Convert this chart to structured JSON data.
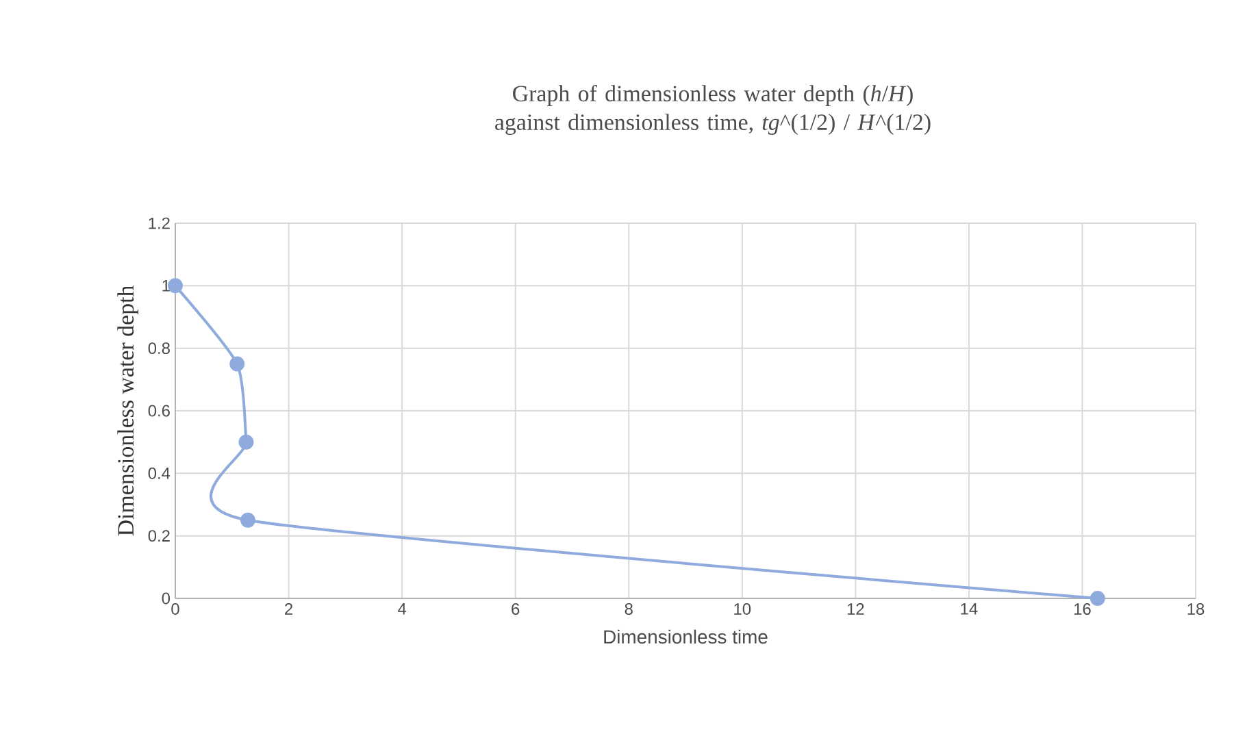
{
  "chart_data": {
    "type": "line",
    "title": "Graph of dimensionless water depth (*h*/*H*) against dimensionless time, *tg*^(1/2)  /  *H*^(1/2)",
    "xlabel": "Dimensionless time",
    "ylabel": "Dimensionless water depth",
    "x": [
      0,
      1.09,
      1.25,
      1.28,
      16.27
    ],
    "series": [
      {
        "color": "#8faadc",
        "values": [
          1,
          0.75,
          0.5,
          0.25,
          0
        ]
      }
    ],
    "xlim": [
      0,
      18
    ],
    "xticks": [
      0,
      2,
      4,
      6,
      8,
      10,
      12,
      14,
      16,
      18
    ],
    "ylim": [
      0,
      1.2
    ],
    "yticks": [
      0,
      0.2,
      0.4,
      0.6,
      0.8,
      1,
      1.2
    ],
    "grid": true,
    "marker": "circle",
    "line_style": "solid"
  }
}
